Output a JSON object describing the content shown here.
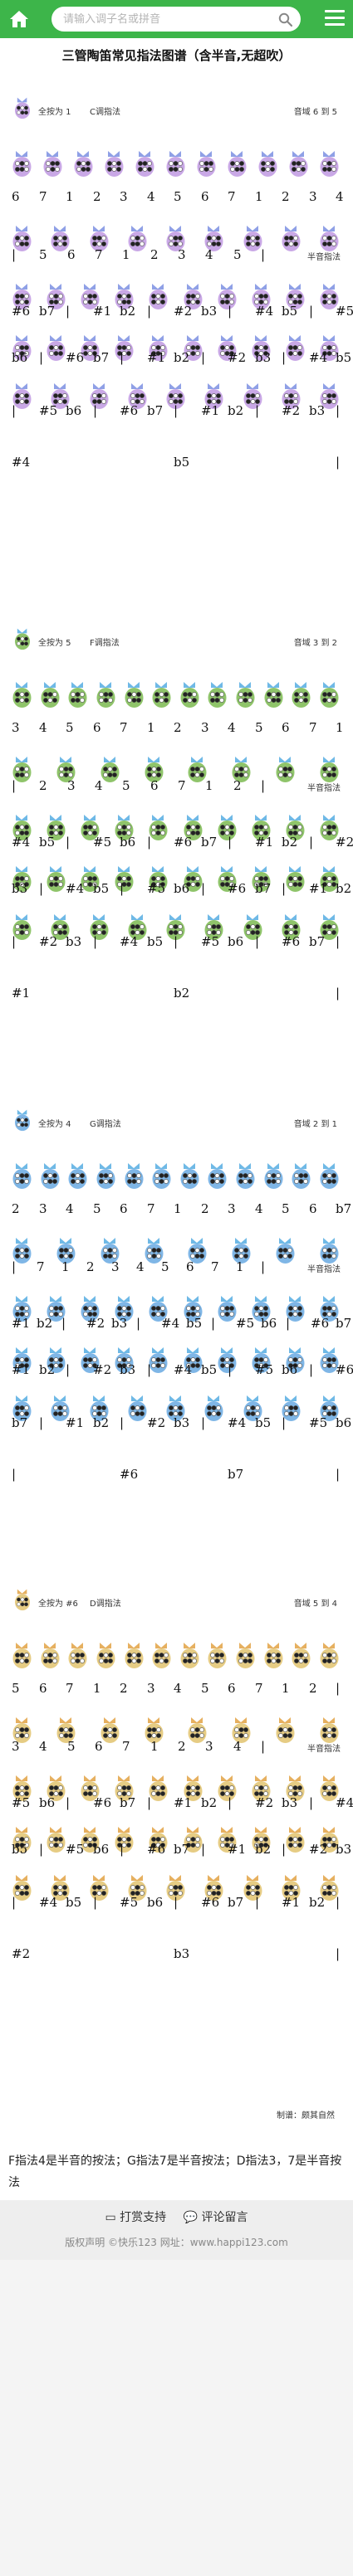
{
  "header": {
    "search_placeholder": "请输入调子名或拼音",
    "icons": [
      "home-icon",
      "search-icon",
      "menu-icon"
    ],
    "brand_color": "#3db54a"
  },
  "page_title": "三管陶笛常见指法图谱（含半音,无超吹）",
  "charts": [
    {
      "all_press": "全按为 1",
      "key": "C调指法",
      "range": "音域 6 到 5",
      "body_color": "#c9a8e6",
      "head_color": "#8fa0e6",
      "rows": [
        {
          "pics": 11,
          "notes": [
            "6",
            "7",
            "1",
            "2",
            "3",
            "4",
            "5",
            "6",
            "7",
            "1",
            "2",
            "3",
            "4"
          ],
          "dots": [
            0,
            0,
            0,
            0,
            0,
            0,
            0,
            0,
            0,
            1,
            1,
            1,
            1
          ],
          "lowdots": [
            1,
            1,
            0,
            0,
            0,
            0,
            0,
            0,
            0,
            0,
            0,
            0,
            0
          ]
        },
        {
          "pics": 9,
          "notes": [
            "|",
            "5",
            "6",
            "7",
            "1",
            "2",
            "3",
            "4",
            "5",
            "|"
          ],
          "label": "半音指法"
        },
        {
          "pics": 10,
          "notes": [
            "#6",
            "b7",
            "|",
            "#1",
            "b2",
            "|",
            "#2",
            "b3",
            "|",
            "#4",
            "b5",
            "|",
            "#5"
          ]
        },
        {
          "pics": 10,
          "notes": [
            "b6",
            "|",
            "#6",
            "b7",
            "|",
            "#1",
            "b2",
            "|",
            "#2",
            "b3",
            "|",
            "#4",
            "b5"
          ]
        },
        {
          "pics": 9,
          "notes": [
            "|",
            "#5",
            "b6",
            "|",
            "#6",
            "b7",
            "|",
            "#1",
            "b2",
            "|",
            "#2",
            "b3",
            "|"
          ]
        },
        {
          "pics": 0,
          "notes": [
            "#4",
            "b5",
            "|"
          ]
        }
      ]
    },
    {
      "all_press": "全按为 5",
      "key": "F调指法",
      "range": "音域 3 到 2",
      "body_color": "#8fc46a",
      "head_color": "#6fb9e6",
      "rows": [
        {
          "pics": 12,
          "notes": [
            "3",
            "4",
            "5",
            "6",
            "7",
            "1",
            "2",
            "3",
            "4",
            "5",
            "6",
            "7",
            "1"
          ]
        },
        {
          "pics": 8,
          "notes": [
            "|",
            "2",
            "3",
            "4",
            "5",
            "6",
            "7",
            "1",
            "2",
            "|"
          ],
          "label": "半音指法"
        },
        {
          "pics": 10,
          "notes": [
            "#4",
            "b5",
            "|",
            "#5",
            "b6",
            "|",
            "#6",
            "b7",
            "|",
            "#1",
            "b2",
            "|",
            "#2"
          ]
        },
        {
          "pics": 10,
          "notes": [
            "b3",
            "|",
            "#4",
            "b5",
            "|",
            "#5",
            "b6",
            "|",
            "#6",
            "b7",
            "|",
            "#1",
            "b2"
          ]
        },
        {
          "pics": 9,
          "notes": [
            "|",
            "#2",
            "b3",
            "|",
            "#4",
            "b5",
            "|",
            "#5",
            "b6",
            "|",
            "#6",
            "b7",
            "|"
          ]
        },
        {
          "pics": 0,
          "notes": [
            "#1",
            "b2",
            "|"
          ]
        }
      ]
    },
    {
      "all_press": "全按为 4",
      "key": "G调指法",
      "range": "音域 2 到 1",
      "body_color": "#7fb6e6",
      "head_color": "#6fb9e6",
      "rows": [
        {
          "pics": 12,
          "notes": [
            "2",
            "3",
            "4",
            "5",
            "6",
            "7",
            "1",
            "2",
            "3",
            "4",
            "5",
            "6",
            "b7"
          ]
        },
        {
          "pics": 8,
          "notes": [
            "|",
            "7",
            "1",
            "2",
            "3",
            "4",
            "5",
            "6",
            "7",
            "1",
            "|"
          ],
          "label": "半音指法"
        },
        {
          "pics": 10,
          "notes": [
            "#1",
            "b2",
            "|",
            "#2",
            "b3",
            "|",
            "#4",
            "b5",
            "|",
            "#5",
            "b6",
            "|",
            "#6",
            "b7"
          ]
        },
        {
          "pics": 10,
          "notes": [
            "#1",
            "b2",
            "|",
            "#2",
            "b3",
            "|",
            "#4",
            "b5",
            "|",
            "#5",
            "b6",
            "|",
            "#6"
          ]
        },
        {
          "pics": 9,
          "notes": [
            "b7",
            "|",
            "#1",
            "b2",
            "|",
            "#2",
            "b3",
            "|",
            "#4",
            "b5",
            "|",
            "#5",
            "b6"
          ]
        },
        {
          "pics": 0,
          "notes": [
            "|",
            "#6",
            "b7",
            "|"
          ]
        }
      ]
    },
    {
      "all_press": "全按为 #6",
      "key": "D调指法",
      "range": "音域 5 到 4",
      "body_color": "#e6cc84",
      "head_color": "#e6b060",
      "rows": [
        {
          "pics": 12,
          "notes": [
            "5",
            "6",
            "7",
            "1",
            "2",
            "3",
            "4",
            "5",
            "6",
            "7",
            "1",
            "2",
            "|"
          ]
        },
        {
          "pics": 8,
          "notes": [
            "3",
            "4",
            "5",
            "6",
            "7",
            "1",
            "2",
            "3",
            "4",
            "|"
          ],
          "label": "半音指法"
        },
        {
          "pics": 10,
          "notes": [
            "#5",
            "b6",
            "|",
            "#6",
            "b7",
            "|",
            "#1",
            "b2",
            "|",
            "#2",
            "b3",
            "|",
            "#4"
          ]
        },
        {
          "pics": 10,
          "notes": [
            "b5",
            "|",
            "#5",
            "b6",
            "|",
            "#6",
            "b7",
            "|",
            "#1",
            "b2",
            "|",
            "#2",
            "b3"
          ]
        },
        {
          "pics": 9,
          "notes": [
            "|",
            "#4",
            "b5",
            "|",
            "#5",
            "b6",
            "|",
            "#6",
            "b7",
            "|",
            "#1",
            "b2",
            "|"
          ]
        },
        {
          "pics": 0,
          "notes": [
            "#2",
            "b3",
            "|"
          ]
        }
      ]
    }
  ],
  "credit": "制谱：颇其自然",
  "footnote": "F指法4是半音的按法；G指法7是半音按法；D指法3，7是半音按法",
  "footer": {
    "reward": "打赏支持",
    "comment": "评论留言",
    "copyright": "版权声明   ©快乐123  网址：www.happi123.com"
  }
}
